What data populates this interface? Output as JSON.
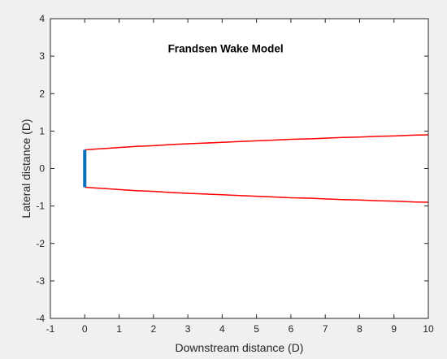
{
  "chart_data": {
    "type": "line",
    "title": "",
    "xlabel": "Downstream distance (D)",
    "ylabel": "Lateral distance (D)",
    "xlim": [
      -1,
      10
    ],
    "ylim": [
      -4,
      4
    ],
    "x_ticks": [
      -1,
      0,
      1,
      2,
      3,
      4,
      5,
      6,
      7,
      8,
      9,
      10
    ],
    "y_ticks": [
      -4,
      -3,
      -2,
      -1,
      0,
      1,
      2,
      3,
      4
    ],
    "grid": false,
    "legend": "none",
    "annotations": [
      {
        "text": "Frandsen Wake Model",
        "x": 4.1,
        "y": 3.1
      }
    ],
    "series": [
      {
        "color": "#ff0000",
        "x": [
          0,
          0.5,
          1,
          1.5,
          2,
          2.5,
          3,
          3.5,
          4,
          4.5,
          5,
          5.5,
          6,
          6.5,
          7,
          7.5,
          8,
          8.5,
          9,
          9.5,
          10
        ],
        "y": [
          0.5,
          0.53,
          0.56,
          0.59,
          0.61,
          0.64,
          0.66,
          0.68,
          0.7,
          0.72,
          0.74,
          0.76,
          0.78,
          0.79,
          0.81,
          0.83,
          0.84,
          0.86,
          0.87,
          0.89,
          0.9
        ]
      },
      {
        "color": "#ff0000",
        "x": [
          0,
          0.5,
          1,
          1.5,
          2,
          2.5,
          3,
          3.5,
          4,
          4.5,
          5,
          5.5,
          6,
          6.5,
          7,
          7.5,
          8,
          8.5,
          9,
          9.5,
          10
        ],
        "y": [
          -0.5,
          -0.53,
          -0.56,
          -0.59,
          -0.61,
          -0.64,
          -0.66,
          -0.68,
          -0.7,
          -0.72,
          -0.74,
          -0.76,
          -0.78,
          -0.79,
          -0.81,
          -0.83,
          -0.84,
          -0.86,
          -0.87,
          -0.89,
          -0.9
        ]
      },
      {
        "color": "#0072bd",
        "x": [
          0,
          0
        ],
        "y": [
          -0.5,
          0.5
        ]
      }
    ]
  }
}
